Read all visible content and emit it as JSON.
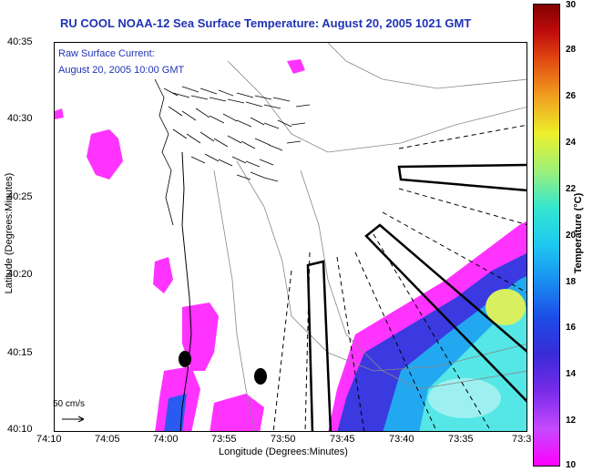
{
  "title": "RU COOL  NOAA-12  Sea Surface Temperature:  August 20, 2005 1021 GMT",
  "legend": {
    "line1": "Raw Surface Current:",
    "line2": "August 20, 2005 10:00 GMT"
  },
  "axes": {
    "ylabel": "Latitude (Degrees:Minutes)",
    "xlabel": "Longitude (Degrees:Minutes)",
    "yticks": [
      "40:35",
      "40:30",
      "40:25",
      "40:20",
      "40:15",
      "40:10"
    ],
    "xticks": [
      "74:10",
      "74:05",
      "74:00",
      "73:55",
      "73:50",
      "73:45",
      "73:40",
      "73:35",
      "73:3"
    ]
  },
  "scale_label": "50 cm/s",
  "colorbar": {
    "label": "Temperature (°C)",
    "ticks": [
      "30",
      "28",
      "26",
      "24",
      "22",
      "20",
      "18",
      "16",
      "14",
      "12",
      "10"
    ],
    "range": [
      10,
      30
    ]
  }
}
